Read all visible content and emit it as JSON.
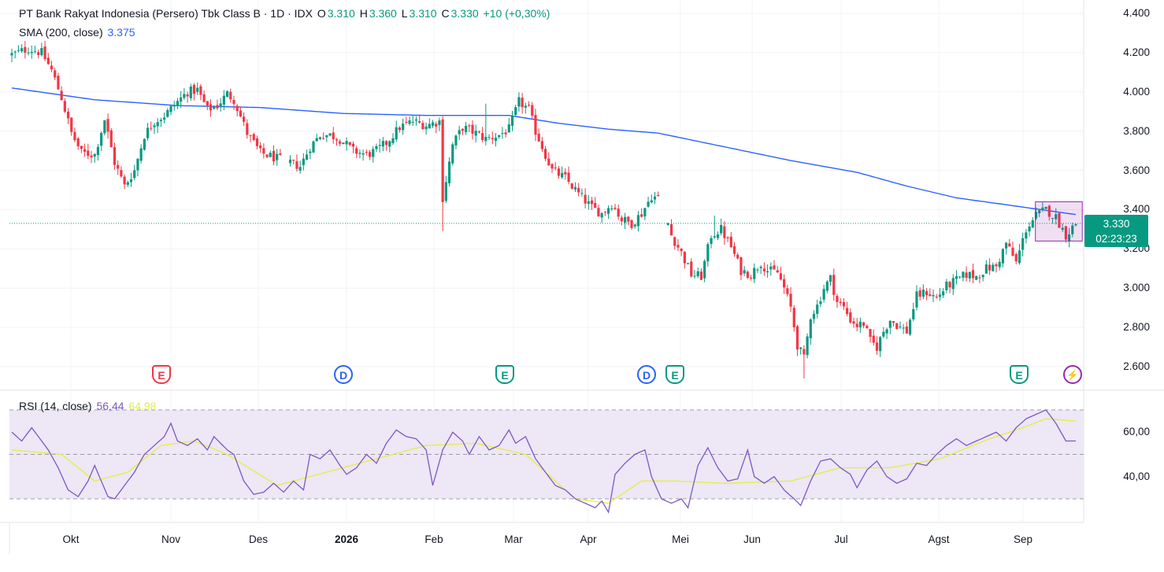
{
  "header": {
    "title": "PT Bank Rakyat Indonesia (Persero) Tbk Class B · 1D · IDX",
    "o_label": "O",
    "o": "3.310",
    "h_label": "H",
    "h": "3.360",
    "l_label": "L",
    "l": "3.310",
    "c_label": "C",
    "c": "3.330",
    "change": "+10 (+0,30%)"
  },
  "indicators": {
    "sma_label": "SMA (200, close)",
    "sma_value": "3.375",
    "rsi_label": "RSI (14, close)",
    "rsi_value": "56,44",
    "rsi_ma_value": "64,98"
  },
  "price_tag": {
    "price": "3.330",
    "countdown": "02:23:23"
  },
  "price_axis": [
    "4.400",
    "4.200",
    "4.000",
    "3.800",
    "3.600",
    "3.400",
    "3.200",
    "3.000",
    "2.800",
    "2.600"
  ],
  "rsi_axis": [
    "60,00",
    "40,00"
  ],
  "time_axis": [
    {
      "label": "Okt",
      "bold": false
    },
    {
      "label": "Nov",
      "bold": false
    },
    {
      "label": "Des",
      "bold": false
    },
    {
      "label": "2026",
      "bold": true
    },
    {
      "label": "Feb",
      "bold": false
    },
    {
      "label": "Mar",
      "bold": false
    },
    {
      "label": "Apr",
      "bold": false
    },
    {
      "label": "Mei",
      "bold": false
    },
    {
      "label": "Jun",
      "bold": false
    },
    {
      "label": "Jul",
      "bold": false
    },
    {
      "label": "Agst",
      "bold": false
    },
    {
      "label": "Sep",
      "bold": false
    }
  ],
  "events": [
    {
      "type": "earnings",
      "glyph": "E",
      "color": "#f23645"
    },
    {
      "type": "dividend",
      "glyph": "D",
      "color": "#2962ff"
    },
    {
      "type": "earnings",
      "glyph": "E",
      "color": "#089981"
    },
    {
      "type": "dividend",
      "glyph": "D",
      "color": "#2962ff"
    },
    {
      "type": "earnings",
      "glyph": "E",
      "color": "#089981"
    },
    {
      "type": "earnings",
      "glyph": "E",
      "color": "#089981"
    },
    {
      "type": "split",
      "glyph": "⚡",
      "color": "#9c27b0"
    }
  ],
  "colors": {
    "up": "#089981",
    "down": "#f23645",
    "sma": "#2962ff",
    "rsi": "#7e57c2",
    "rsi_ma": "#e4ee3e",
    "rsi_band": "#ede7f6"
  },
  "chart_data": [
    {
      "type": "candlestick",
      "ylim": [
        2530,
        4440
      ],
      "y_ticks": [
        4400,
        4200,
        4000,
        3800,
        3600,
        3400,
        3200,
        3000,
        2800,
        2600
      ],
      "last_price": 3330,
      "anchors": [
        [
          0,
          4190
        ],
        [
          5,
          4220
        ],
        [
          9,
          4200
        ],
        [
          12,
          4110
        ],
        [
          15,
          3970
        ],
        [
          18,
          3790
        ],
        [
          21,
          3690
        ],
        [
          25,
          3680
        ],
        [
          28,
          3860
        ],
        [
          31,
          3640
        ],
        [
          34,
          3520
        ],
        [
          37,
          3600
        ],
        [
          40,
          3780
        ],
        [
          43,
          3850
        ],
        [
          46,
          3880
        ],
        [
          50,
          3950
        ],
        [
          53,
          4000
        ],
        [
          56,
          4010
        ],
        [
          59,
          3910
        ],
        [
          62,
          3930
        ],
        [
          65,
          3990
        ],
        [
          67,
          3960
        ],
        [
          71,
          3790
        ],
        [
          75,
          3690
        ],
        [
          80,
          3660
        ],
        [
          84,
          3640
        ],
        [
          87,
          3620
        ],
        [
          90,
          3720
        ],
        [
          93,
          3780
        ],
        [
          96,
          3780
        ],
        [
          99,
          3760
        ],
        [
          103,
          3700
        ],
        [
          107,
          3680
        ],
        [
          110,
          3700
        ],
        [
          113,
          3740
        ],
        [
          117,
          3820
        ],
        [
          121,
          3850
        ],
        [
          125,
          3830
        ],
        [
          129,
          3850
        ],
        [
          130,
          3460
        ],
        [
          133,
          3730
        ],
        [
          136,
          3820
        ],
        [
          140,
          3790
        ],
        [
          143,
          3760
        ],
        [
          147,
          3780
        ],
        [
          150,
          3810
        ],
        [
          153,
          3950
        ],
        [
          156,
          3910
        ],
        [
          158,
          3800
        ],
        [
          160,
          3720
        ],
        [
          163,
          3600
        ],
        [
          167,
          3560
        ],
        [
          171,
          3480
        ],
        [
          175,
          3410
        ],
        [
          178,
          3380
        ],
        [
          181,
          3430
        ],
        [
          184,
          3350
        ],
        [
          187,
          3330
        ],
        [
          190,
          3380
        ],
        [
          193,
          3470
        ],
        [
          196,
          3450
        ],
        [
          199,
          3270
        ],
        [
          202,
          3180
        ],
        [
          205,
          3070
        ],
        [
          208,
          3060
        ],
        [
          211,
          3270
        ],
        [
          214,
          3300
        ],
        [
          217,
          3210
        ],
        [
          220,
          3090
        ],
        [
          223,
          3070
        ],
        [
          226,
          3130
        ],
        [
          228,
          3090
        ],
        [
          231,
          3080
        ],
        [
          233,
          3000
        ],
        [
          235,
          2900
        ],
        [
          237,
          2710
        ],
        [
          239,
          2640
        ],
        [
          241,
          2860
        ],
        [
          243,
          2910
        ],
        [
          245,
          3000
        ],
        [
          247,
          3050
        ],
        [
          249,
          2930
        ],
        [
          251,
          2900
        ],
        [
          253,
          2840
        ],
        [
          255,
          2810
        ],
        [
          257,
          2820
        ],
        [
          259,
          2730
        ],
        [
          261,
          2700
        ],
        [
          263,
          2780
        ],
        [
          265,
          2840
        ],
        [
          268,
          2800
        ],
        [
          270,
          2780
        ],
        [
          273,
          2960
        ],
        [
          276,
          2980
        ],
        [
          279,
          2950
        ],
        [
          282,
          3010
        ],
        [
          285,
          3040
        ],
        [
          288,
          3070
        ],
        [
          291,
          3060
        ],
        [
          294,
          3100
        ],
        [
          297,
          3110
        ],
        [
          300,
          3230
        ],
        [
          303,
          3130
        ],
        [
          306,
          3300
        ],
        [
          309,
          3370
        ],
        [
          312,
          3400
        ],
        [
          315,
          3360
        ],
        [
          318,
          3270
        ],
        [
          321,
          3330
        ]
      ],
      "sma_200": [
        [
          0,
          4020
        ],
        [
          25,
          3960
        ],
        [
          50,
          3930
        ],
        [
          75,
          3920
        ],
        [
          100,
          3890
        ],
        [
          125,
          3880
        ],
        [
          150,
          3880
        ],
        [
          165,
          3840
        ],
        [
          180,
          3810
        ],
        [
          195,
          3790
        ],
        [
          215,
          3720
        ],
        [
          235,
          3650
        ],
        [
          255,
          3590
        ],
        [
          270,
          3520
        ],
        [
          285,
          3460
        ],
        [
          300,
          3425
        ],
        [
          321,
          3375
        ]
      ],
      "highlight_box": {
        "from_index": 310,
        "to_index": 322,
        "low": 3240,
        "high": 3440
      }
    },
    {
      "type": "line",
      "name": "RSI (14, close)",
      "ylim": [
        20,
        80
      ],
      "bands": [
        30,
        50,
        70
      ],
      "y_ticks": [
        60,
        40
      ],
      "rsi_anchors": [
        [
          0,
          60
        ],
        [
          3,
          56
        ],
        [
          6,
          62
        ],
        [
          8,
          58
        ],
        [
          11,
          52
        ],
        [
          14,
          44
        ],
        [
          17,
          34
        ],
        [
          20,
          31
        ],
        [
          23,
          38
        ],
        [
          25,
          45
        ],
        [
          27,
          38
        ],
        [
          29,
          31
        ],
        [
          31,
          30
        ],
        [
          34,
          36
        ],
        [
          37,
          42
        ],
        [
          40,
          50
        ],
        [
          43,
          54
        ],
        [
          46,
          58
        ],
        [
          48,
          64
        ],
        [
          50,
          56
        ],
        [
          53,
          54
        ],
        [
          56,
          57
        ],
        [
          59,
          52
        ],
        [
          61,
          58
        ],
        [
          63,
          55
        ],
        [
          65,
          52
        ],
        [
          67,
          50
        ],
        [
          70,
          38
        ],
        [
          73,
          32
        ],
        [
          76,
          33
        ],
        [
          79,
          37
        ],
        [
          82,
          33
        ],
        [
          85,
          38
        ],
        [
          88,
          34
        ],
        [
          90,
          50
        ],
        [
          93,
          48
        ],
        [
          96,
          52
        ],
        [
          99,
          45
        ],
        [
          101,
          41
        ],
        [
          104,
          44
        ],
        [
          107,
          50
        ],
        [
          110,
          46
        ],
        [
          113,
          55
        ],
        [
          116,
          61
        ],
        [
          119,
          58
        ],
        [
          122,
          57
        ],
        [
          125,
          52
        ],
        [
          127,
          36
        ],
        [
          130,
          52
        ],
        [
          133,
          60
        ],
        [
          136,
          56
        ],
        [
          138,
          50
        ],
        [
          141,
          58
        ],
        [
          144,
          52
        ],
        [
          147,
          54
        ],
        [
          150,
          61
        ],
        [
          152,
          55
        ],
        [
          155,
          58
        ],
        [
          158,
          48
        ],
        [
          161,
          42
        ],
        [
          164,
          36
        ],
        [
          167,
          34
        ],
        [
          170,
          30
        ],
        [
          173,
          28
        ],
        [
          176,
          26
        ],
        [
          178,
          29
        ],
        [
          180,
          24
        ],
        [
          182,
          41
        ],
        [
          185,
          46
        ],
        [
          188,
          50
        ],
        [
          191,
          52
        ],
        [
          193,
          40
        ],
        [
          196,
          30
        ],
        [
          199,
          28
        ],
        [
          202,
          30
        ],
        [
          204,
          26
        ],
        [
          207,
          45
        ],
        [
          210,
          53
        ],
        [
          213,
          44
        ],
        [
          216,
          38
        ],
        [
          219,
          39
        ],
        [
          222,
          52
        ],
        [
          224,
          40
        ],
        [
          227,
          37
        ],
        [
          230,
          40
        ],
        [
          233,
          34
        ],
        [
          236,
          30
        ],
        [
          238,
          27
        ],
        [
          241,
          38
        ],
        [
          244,
          47
        ],
        [
          247,
          48
        ],
        [
          250,
          44
        ],
        [
          253,
          41
        ],
        [
          255,
          35
        ],
        [
          258,
          43
        ],
        [
          261,
          47
        ],
        [
          264,
          40
        ],
        [
          267,
          37
        ],
        [
          270,
          39
        ],
        [
          273,
          46
        ],
        [
          276,
          45
        ],
        [
          279,
          50
        ],
        [
          282,
          54
        ],
        [
          285,
          57
        ],
        [
          288,
          54
        ],
        [
          291,
          56
        ],
        [
          294,
          58
        ],
        [
          297,
          60
        ],
        [
          300,
          56
        ],
        [
          303,
          62
        ],
        [
          306,
          66
        ],
        [
          309,
          68
        ],
        [
          312,
          70
        ],
        [
          315,
          64
        ],
        [
          318,
          56
        ],
        [
          321,
          56
        ]
      ],
      "ma_anchors": [
        [
          0,
          52
        ],
        [
          15,
          50
        ],
        [
          25,
          38
        ],
        [
          35,
          42
        ],
        [
          45,
          54
        ],
        [
          55,
          56
        ],
        [
          65,
          50
        ],
        [
          80,
          36
        ],
        [
          95,
          42
        ],
        [
          110,
          48
        ],
        [
          125,
          54
        ],
        [
          140,
          55
        ],
        [
          155,
          50
        ],
        [
          170,
          30
        ],
        [
          180,
          28
        ],
        [
          190,
          38
        ],
        [
          200,
          38
        ],
        [
          215,
          37
        ],
        [
          235,
          38
        ],
        [
          250,
          44
        ],
        [
          265,
          44
        ],
        [
          280,
          48
        ],
        [
          295,
          57
        ],
        [
          305,
          62
        ],
        [
          312,
          66
        ],
        [
          321,
          65
        ]
      ]
    }
  ]
}
